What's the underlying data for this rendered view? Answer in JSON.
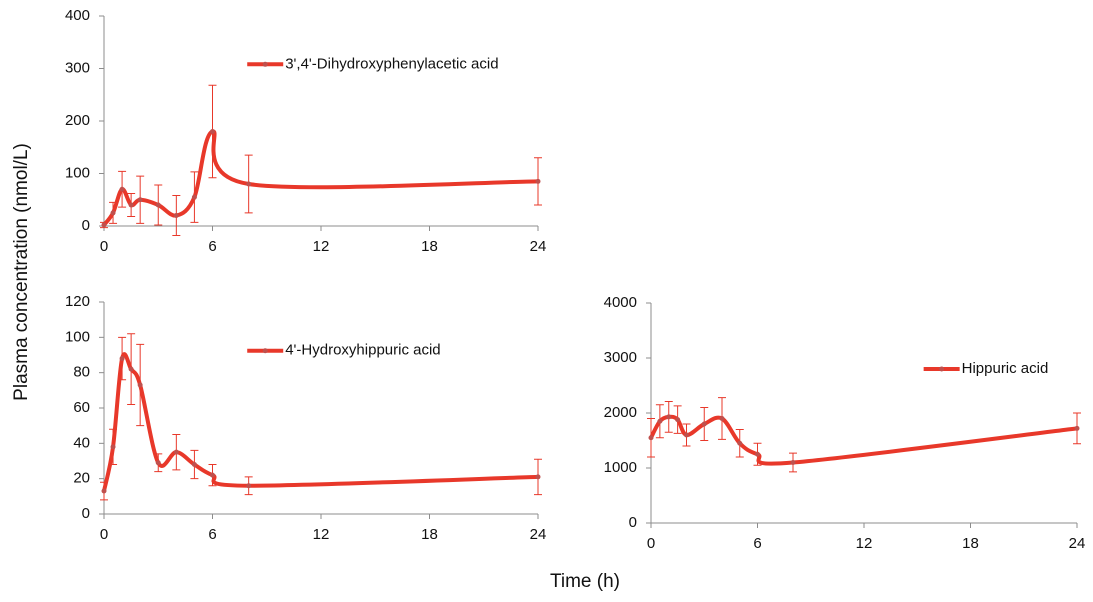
{
  "ylabel": "Plasma concentration (nmol/L)",
  "xlabel": "Time (h)",
  "chart_data": [
    {
      "type": "line",
      "xlim": [
        0,
        24
      ],
      "xticks": [
        0,
        6,
        12,
        18,
        24
      ],
      "ylim": [
        0,
        400
      ],
      "yticks": [
        0,
        100,
        200,
        300,
        400
      ],
      "legend": "upper center",
      "x": [
        0,
        0.5,
        1,
        1.5,
        2,
        3,
        4,
        5,
        6,
        8,
        24
      ],
      "series": [
        {
          "name": "3',4'-Dihydroxyphenylacetic acid",
          "color": "#e8382a",
          "values": [
            2,
            25,
            70,
            40,
            50,
            40,
            20,
            55,
            180,
            80,
            85
          ],
          "errors": [
            5,
            20,
            34,
            22,
            45,
            38,
            38,
            48,
            88,
            55,
            45
          ]
        }
      ]
    },
    {
      "type": "line",
      "xlim": [
        0,
        24
      ],
      "xticks": [
        0,
        6,
        12,
        18,
        24
      ],
      "ylim": [
        0,
        120
      ],
      "yticks": [
        0,
        20,
        40,
        60,
        80,
        100,
        120
      ],
      "legend": "upper center",
      "x": [
        0,
        0.5,
        1,
        1.5,
        2,
        3,
        4,
        5,
        6,
        8,
        24
      ],
      "series": [
        {
          "name": "4'-Hydroxyhippuric acid",
          "color": "#e8382a",
          "values": [
            13,
            38,
            88,
            82,
            73,
            29,
            35,
            28,
            22,
            16,
            21
          ],
          "errors": [
            5,
            10,
            12,
            20,
            23,
            5,
            10,
            8,
            6,
            5,
            10
          ]
        }
      ]
    },
    {
      "type": "line",
      "xlim": [
        0,
        24
      ],
      "xticks": [
        0,
        6,
        12,
        18,
        24
      ],
      "ylim": [
        0,
        4000
      ],
      "yticks": [
        0,
        1000,
        2000,
        3000,
        4000
      ],
      "legend": "upper right",
      "x": [
        0,
        0.5,
        1,
        1.5,
        2,
        3,
        4,
        5,
        6,
        8,
        24
      ],
      "series": [
        {
          "name": "Hippuric acid",
          "color": "#e8382a",
          "values": [
            1550,
            1850,
            1930,
            1880,
            1600,
            1800,
            1900,
            1450,
            1250,
            1100,
            1720
          ],
          "errors": [
            350,
            300,
            280,
            250,
            200,
            300,
            380,
            250,
            200,
            170,
            280
          ]
        }
      ]
    }
  ]
}
